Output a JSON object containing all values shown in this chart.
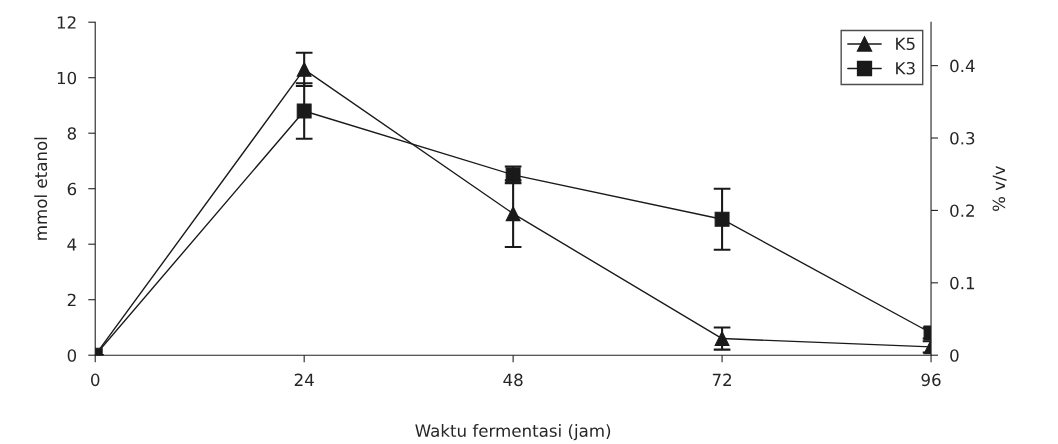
{
  "chart_data": {
    "type": "line",
    "xlabel": "Waktu fermentasi (jam)",
    "ylabel": "mmol etanol",
    "y2label": "% v/v",
    "x": [
      0,
      24,
      48,
      72,
      96
    ],
    "series": [
      {
        "name": "K5",
        "color": "#1a1a1a",
        "marker": "triangle",
        "values": [
          0,
          10.3,
          5.1,
          0.6,
          0.3
        ],
        "errors": [
          0,
          0.6,
          1.2,
          0.4,
          0.2
        ]
      },
      {
        "name": "K3",
        "color": "#1a1a1a",
        "marker": "square",
        "values": [
          0,
          8.8,
          6.5,
          4.9,
          0.8
        ],
        "errors": [
          0,
          1.0,
          0.3,
          1.1,
          0.2
        ]
      }
    ],
    "xlim": [
      0,
      96
    ],
    "xticks": [
      0,
      24,
      48,
      72,
      96
    ],
    "ylim": [
      0,
      12
    ],
    "yticks": [
      0,
      2,
      4,
      6,
      8,
      10,
      12
    ],
    "y2lim": [
      0,
      0.46
    ],
    "y2ticks": [
      0,
      0.1,
      0.2,
      0.3,
      0.4
    ],
    "grid": false,
    "legend": "top right",
    "line_style": "solid"
  }
}
